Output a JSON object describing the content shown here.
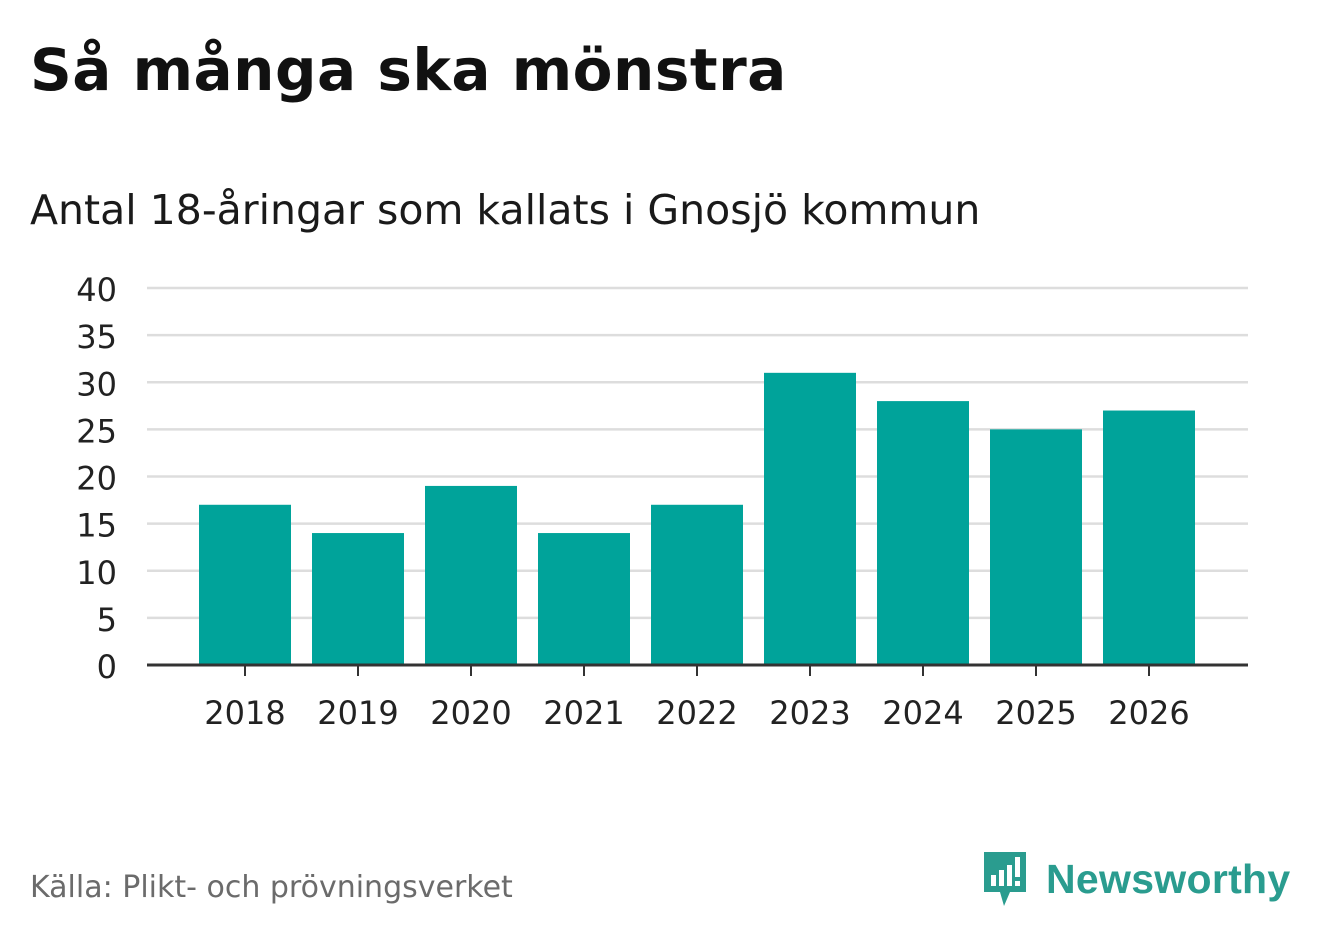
{
  "title": "Så många ska mönstra",
  "subtitle": "Antal 18-åringar som kallats i Gnosjö kommun",
  "source": "Källa: Plikt- och prövningsverket",
  "brand": {
    "name": "Newsworthy",
    "icon": "newsworthy-logo-icon"
  },
  "colors": {
    "bar": "#00a39a",
    "grid": "#dddddd",
    "axis": "#333333",
    "brand": "#2a9c8f"
  },
  "chart_data": {
    "type": "bar",
    "title": "Så många ska mönstra",
    "subtitle": "Antal 18-åringar som kallats i Gnosjö kommun",
    "categories": [
      "2018",
      "2019",
      "2020",
      "2021",
      "2022",
      "2023",
      "2024",
      "2025",
      "2026"
    ],
    "values": [
      17,
      14,
      19,
      14,
      17,
      31,
      28,
      25,
      27
    ],
    "xlabel": "",
    "ylabel": "",
    "ylim": [
      0,
      40
    ],
    "yticks": [
      "0",
      "5",
      "10",
      "15",
      "20",
      "25",
      "30",
      "35",
      "40"
    ],
    "grid": true
  }
}
